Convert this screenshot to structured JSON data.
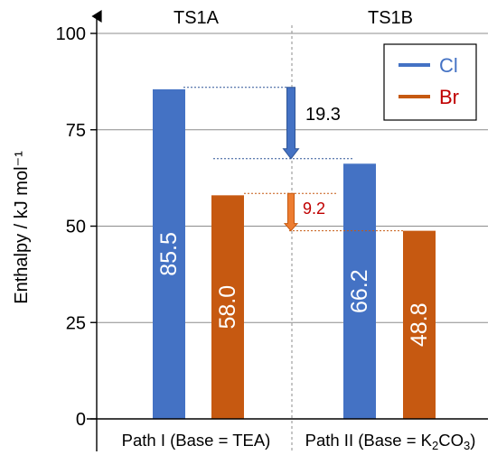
{
  "chart_data": {
    "type": "bar",
    "title": "",
    "ylabel": "Enthalpy / kJ mol⁻¹",
    "ylim": [
      0,
      100
    ],
    "yticks": [
      0,
      25,
      50,
      75,
      100
    ],
    "grid": true,
    "legend_position": "top-right",
    "groups": [
      {
        "name": "TS1A",
        "xlabel": "Path I (Base = TEA)",
        "values": {
          "Cl": 85.5,
          "Br": 58.0
        },
        "labels": {
          "Cl": "85.5",
          "Br": "58.0"
        }
      },
      {
        "name": "TS1B",
        "xlabel_parts": [
          "Path II (Base = K",
          "2",
          "CO",
          "3",
          ")"
        ],
        "values": {
          "Cl": 66.2,
          "Br": 48.8
        },
        "labels": {
          "Cl": "66.2",
          "Br": "48.8"
        }
      }
    ],
    "series": [
      {
        "name": "Cl",
        "color": "#4472C4"
      },
      {
        "name": "Br",
        "color": "#C65911"
      }
    ],
    "annotations": [
      {
        "label": "19.3",
        "series": "Cl",
        "from": 86,
        "to": 67.5,
        "color": "#2F5597",
        "arrow_fill": "#4472C4",
        "text_color": "#000000"
      },
      {
        "label": "9.2",
        "series": "Br",
        "from": 58.5,
        "to": 48.8,
        "color": "#C65911",
        "arrow_fill": "#ED7D31",
        "text_color": "#C00000"
      }
    ]
  }
}
